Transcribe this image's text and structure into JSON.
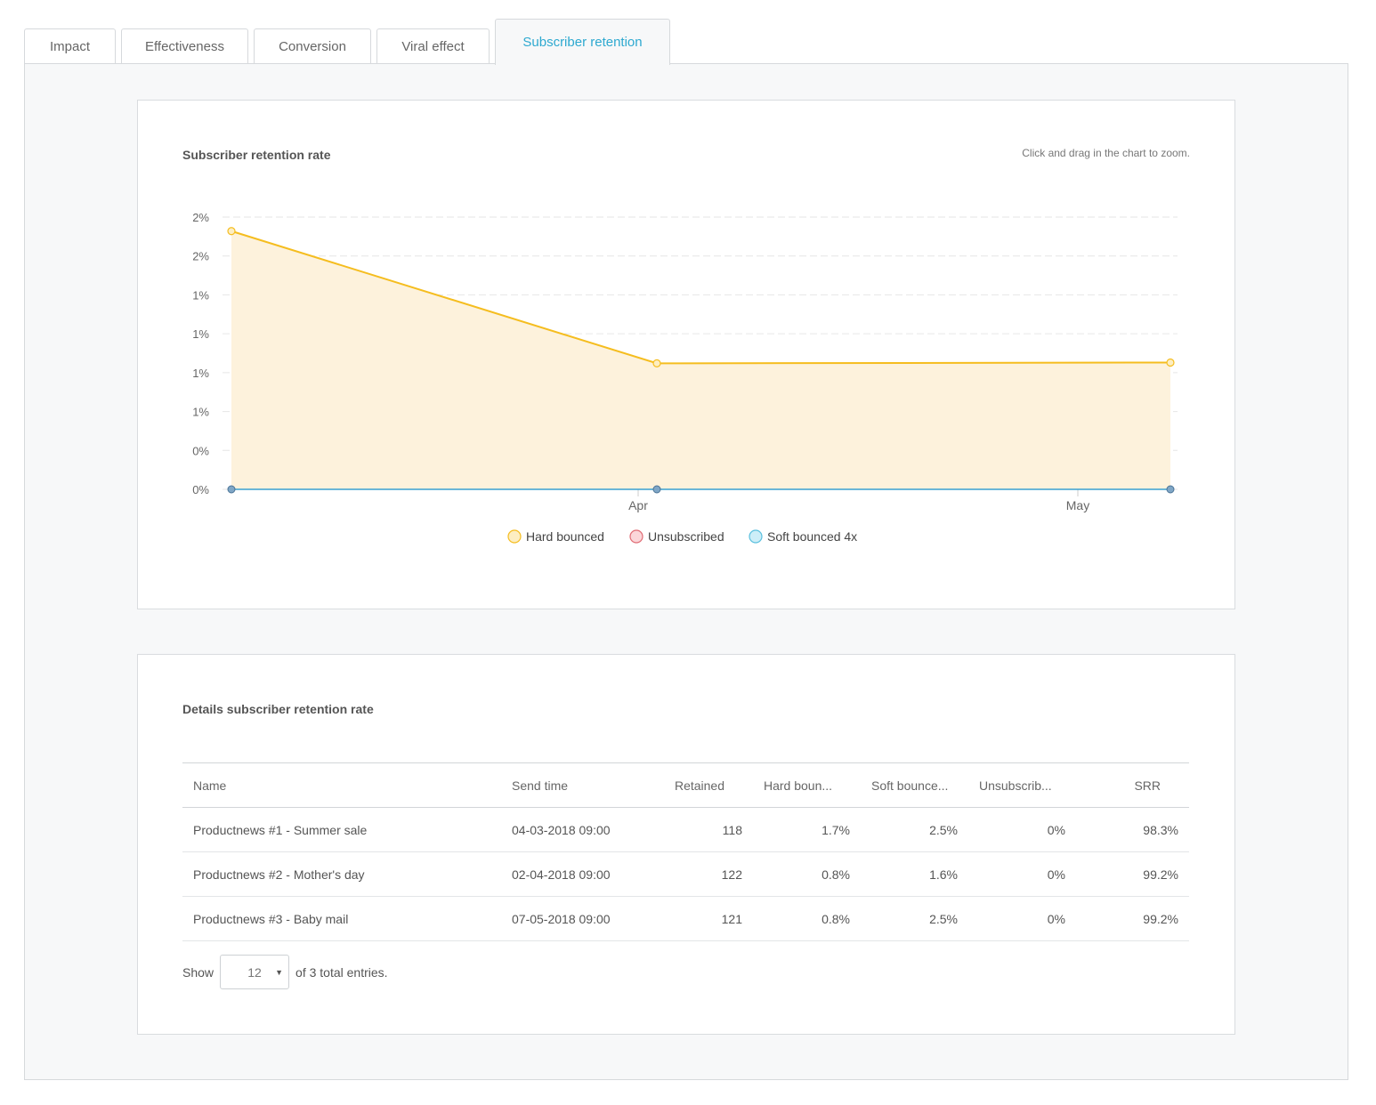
{
  "tabs": [
    {
      "label": "Impact"
    },
    {
      "label": "Effectiveness"
    },
    {
      "label": "Conversion"
    },
    {
      "label": "Viral effect"
    },
    {
      "label": "Subscriber retention",
      "active": true
    }
  ],
  "chart_card": {
    "title": "Subscriber retention rate",
    "hint": "Click and drag in the chart to zoom."
  },
  "chart_data": {
    "type": "area",
    "title": "Subscriber retention rate",
    "xlabel": "",
    "ylabel": "",
    "x_ticks": [
      "Apr",
      "May"
    ],
    "y_tick_labels": [
      "2%",
      "2%",
      "1%",
      "1%",
      "1%",
      "1%",
      "0%",
      "0%"
    ],
    "ylim": [
      0,
      1.75
    ],
    "x": [
      "04-03-2018",
      "02-04-2018",
      "07-05-2018"
    ],
    "series": [
      {
        "name": "Hard bounced",
        "values": [
          1.66,
          0.81,
          0.815
        ],
        "color": "#f5bd1f",
        "fill": "#fdf2dc"
      },
      {
        "name": "Unsubscribed",
        "values": [
          0,
          0,
          0
        ],
        "color": "#e8888e"
      },
      {
        "name": "Soft bounced 4x",
        "values": [
          0,
          0,
          0
        ],
        "color": "#3aa0d0"
      }
    ],
    "legend": [
      {
        "name": "Hard bounced",
        "fill": "#fdeec2",
        "stroke": "#f5bd1f"
      },
      {
        "name": "Unsubscribed",
        "fill": "#fbd6d9",
        "stroke": "#e06c75"
      },
      {
        "name": "Soft bounced 4x",
        "fill": "#cdeef8",
        "stroke": "#5bc0de"
      }
    ],
    "legend_position": "bottom-center"
  },
  "details": {
    "title": "Details subscriber retention rate",
    "columns": [
      "Name",
      "Send time",
      "Retained",
      "Hard boun...",
      "Soft bounce...",
      "Unsubscrib...",
      "SRR"
    ],
    "rows": [
      [
        "Productnews #1 - Summer sale",
        "04-03-2018 09:00",
        "118",
        "1.7%",
        "2.5%",
        "0%",
        "98.3%"
      ],
      [
        "Productnews #2 - Mother's day",
        "02-04-2018 09:00",
        "122",
        "0.8%",
        "1.6%",
        "0%",
        "99.2%"
      ],
      [
        "Productnews #3 - Baby mail",
        "07-05-2018 09:00",
        "121",
        "0.8%",
        "2.5%",
        "0%",
        "99.2%"
      ]
    ],
    "show_label": "Show",
    "page_size": "12",
    "total_label": "of 3 total entries."
  }
}
